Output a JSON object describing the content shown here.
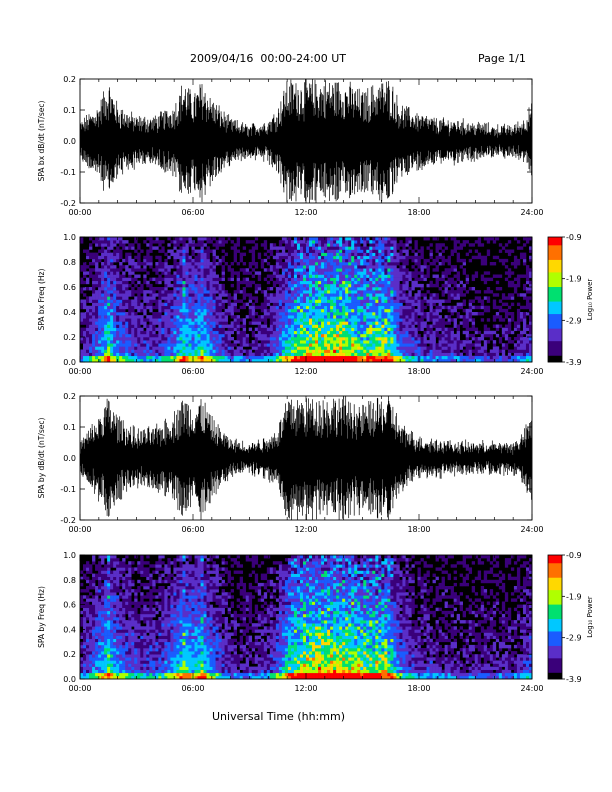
{
  "header": {
    "title": "2009/04/16  00:00-24:00 UT",
    "page": "Page 1/1"
  },
  "footer": {
    "xlabel": "Universal Time (hh:mm)"
  },
  "colors": {
    "trace": "#000000",
    "background": "#ffffff",
    "spectrogram_bg": "#000000",
    "colormap": [
      "#000000",
      "#3a007a",
      "#5a2ec8",
      "#1a5cff",
      "#00c8ff",
      "#00e070",
      "#b0ff00",
      "#ffd800",
      "#ff7000",
      "#ff0000"
    ]
  },
  "chart_data": [
    {
      "type": "line",
      "panel": "bx-waveform",
      "ylabel": "SPA bx dB/dt (nT/sec)",
      "xlim": [
        0,
        24
      ],
      "ylim": [
        -0.2,
        0.2
      ],
      "yticks": [
        "0.2",
        "0.1",
        "0.0",
        "-0.1",
        "-0.2"
      ],
      "xticks": [
        "00:00",
        "06:00",
        "12:00",
        "18:00",
        "24:00"
      ],
      "series": [
        {
          "x": [
            0,
            1,
            1.5,
            2,
            3,
            4,
            5,
            5.5,
            6,
            6.5,
            7,
            8,
            9,
            10,
            10.5,
            11,
            12,
            13,
            14,
            15,
            16,
            16.5,
            17,
            18,
            19,
            20,
            21,
            22,
            23,
            23.5,
            24
          ],
          "amplitude": [
            0.06,
            0.12,
            0.2,
            0.12,
            0.08,
            0.08,
            0.12,
            0.2,
            0.15,
            0.2,
            0.14,
            0.07,
            0.05,
            0.07,
            0.11,
            0.2,
            0.2,
            0.2,
            0.2,
            0.16,
            0.2,
            0.2,
            0.12,
            0.09,
            0.07,
            0.07,
            0.06,
            0.05,
            0.05,
            0.07,
            0.12
          ]
        }
      ]
    },
    {
      "type": "heatmap",
      "panel": "bx-spectrogram",
      "ylabel": "SPA bx Freq (Hz)",
      "xlim": [
        0,
        24
      ],
      "ylim": [
        0,
        1.0
      ],
      "yticks": [
        "1.0",
        "0.8",
        "0.6",
        "0.4",
        "0.2",
        "0.0"
      ],
      "xticks": [
        "00:00",
        "06:00",
        "12:00",
        "18:00",
        "24:00"
      ],
      "colorbar": {
        "label": "Log₁₀ Power",
        "range": [
          -3.9,
          -0.9
        ],
        "ticks": [
          "-0.9",
          "-1.9",
          "-2.9",
          "-3.9"
        ]
      },
      "activity": {
        "x": [
          0,
          1,
          1.5,
          2,
          3,
          4,
          5,
          5.5,
          6,
          6.5,
          7,
          8,
          9,
          10,
          10.5,
          11,
          12,
          13,
          14,
          15,
          16,
          16.5,
          17,
          18,
          19,
          20,
          21,
          22,
          23,
          23.5,
          24
        ],
        "level": [
          0.2,
          0.5,
          0.8,
          0.5,
          0.3,
          0.3,
          0.5,
          0.8,
          0.6,
          0.75,
          0.5,
          0.25,
          0.2,
          0.3,
          0.45,
          0.7,
          0.9,
          0.95,
          1.0,
          0.75,
          0.85,
          0.8,
          0.45,
          0.3,
          0.25,
          0.25,
          0.2,
          0.15,
          0.15,
          0.25,
          0.35
        ]
      }
    },
    {
      "type": "line",
      "panel": "by-waveform",
      "ylabel": "SPA by dB/dt (nT/sec)",
      "xlim": [
        0,
        24
      ],
      "ylim": [
        -0.2,
        0.2
      ],
      "yticks": [
        "0.2",
        "0.1",
        "0.0",
        "-0.1",
        "-0.2"
      ],
      "xticks": [
        "00:00",
        "06:00",
        "12:00",
        "18:00",
        "24:00"
      ],
      "series": [
        {
          "x": [
            0,
            1,
            1.5,
            2,
            3,
            4,
            5,
            5.5,
            6,
            6.5,
            7,
            8,
            9,
            10,
            10.5,
            11,
            12,
            13,
            14,
            15,
            16,
            16.5,
            17,
            18,
            19,
            20,
            21,
            22,
            23,
            23.5,
            24
          ],
          "amplitude": [
            0.05,
            0.14,
            0.2,
            0.14,
            0.09,
            0.1,
            0.15,
            0.2,
            0.18,
            0.2,
            0.13,
            0.06,
            0.05,
            0.07,
            0.1,
            0.2,
            0.2,
            0.2,
            0.2,
            0.17,
            0.2,
            0.2,
            0.11,
            0.07,
            0.06,
            0.05,
            0.05,
            0.05,
            0.05,
            0.08,
            0.14
          ]
        }
      ]
    },
    {
      "type": "heatmap",
      "panel": "by-spectrogram",
      "ylabel": "SPA by Freq (Hz)",
      "xlim": [
        0,
        24
      ],
      "ylim": [
        0,
        1.0
      ],
      "yticks": [
        "1.0",
        "0.8",
        "0.6",
        "0.4",
        "0.2",
        "0.0"
      ],
      "xticks": [
        "00:00",
        "06:00",
        "12:00",
        "18:00",
        "24:00"
      ],
      "colorbar": {
        "label": "Log₁₀ Power",
        "range": [
          -3.9,
          -0.9
        ],
        "ticks": [
          "-0.9",
          "-1.9",
          "-2.9",
          "-3.9"
        ]
      },
      "activity": {
        "x": [
          0,
          1,
          1.5,
          2,
          3,
          4,
          5,
          5.5,
          6,
          6.5,
          7,
          8,
          9,
          10,
          10.5,
          11,
          12,
          13,
          14,
          15,
          16,
          16.5,
          17,
          18,
          19,
          20,
          21,
          22,
          23,
          23.5,
          24
        ],
        "level": [
          0.25,
          0.55,
          0.8,
          0.55,
          0.35,
          0.35,
          0.55,
          0.8,
          0.65,
          0.8,
          0.5,
          0.25,
          0.2,
          0.3,
          0.45,
          0.75,
          0.95,
          1.0,
          1.0,
          0.8,
          0.85,
          0.8,
          0.45,
          0.3,
          0.25,
          0.2,
          0.2,
          0.2,
          0.2,
          0.3,
          0.4
        ]
      }
    }
  ]
}
